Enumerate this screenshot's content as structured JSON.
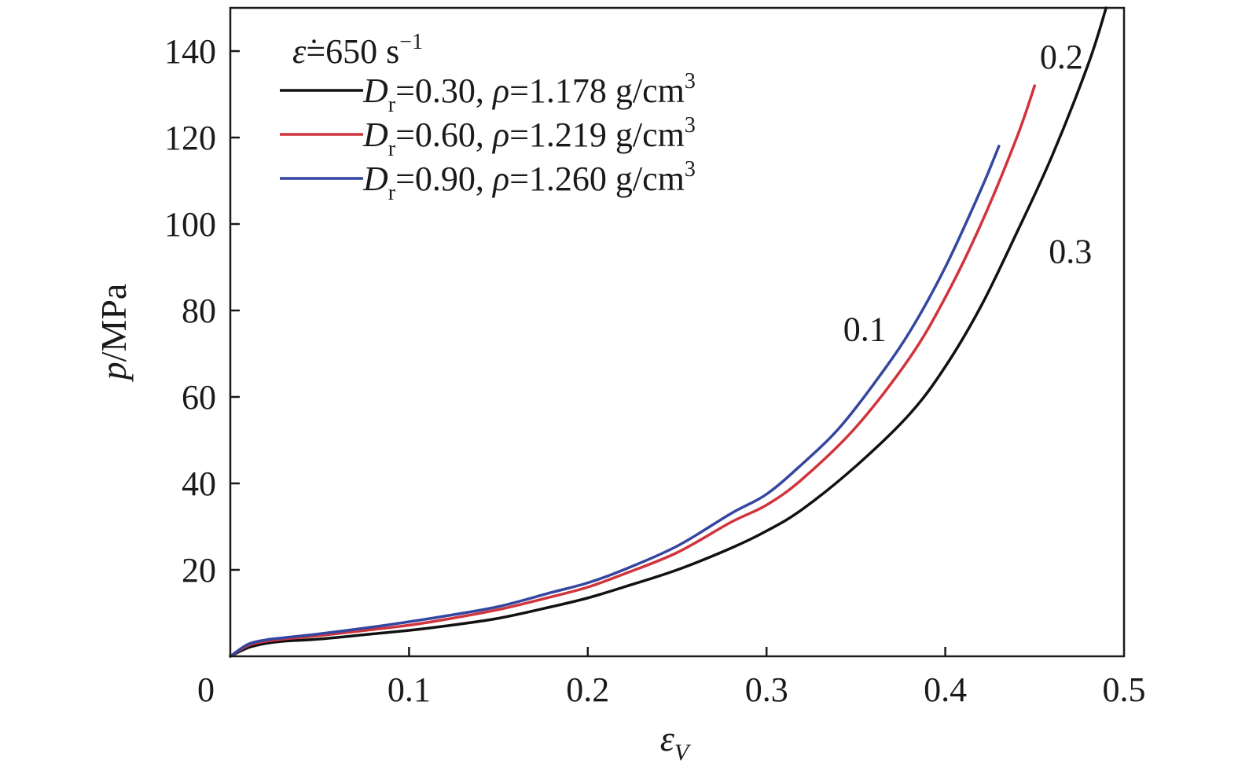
{
  "chart_data": {
    "type": "line",
    "xlabel": {
      "main": "ε",
      "sub": "V"
    },
    "ylabel": {
      "italic": "p",
      "rest": "/MPa"
    },
    "xlim": [
      0,
      0.5
    ],
    "ylim": [
      0,
      150
    ],
    "x_ticks": [
      {
        "value": 0,
        "label": "0"
      },
      {
        "value": 0.1,
        "label": "0.1"
      },
      {
        "value": 0.2,
        "label": "0.2"
      },
      {
        "value": 0.3,
        "label": "0.3"
      },
      {
        "value": 0.4,
        "label": "0.4"
      },
      {
        "value": 0.5,
        "label": "0.5"
      }
    ],
    "y_ticks": [
      {
        "value": 20,
        "label": "20"
      },
      {
        "value": 40,
        "label": "40"
      },
      {
        "value": 60,
        "label": "60"
      },
      {
        "value": 80,
        "label": "80"
      },
      {
        "value": 100,
        "label": "100"
      },
      {
        "value": 120,
        "label": "120"
      },
      {
        "value": 140,
        "label": "140"
      }
    ],
    "legend": {
      "position": "top-left",
      "header": {
        "symbol": "ε̇",
        "text": "=650 s",
        "sup": "−1"
      },
      "entries": [
        {
          "D": "D",
          "sub": "r",
          "text": "=0.30, ",
          "rho": "ρ",
          "text2": "=1.178 g/cm",
          "sup": "3",
          "color": "#111111"
        },
        {
          "D": "D",
          "sub": "r",
          "text": "=0.60, ",
          "rho": "ρ",
          "text2": "=1.219 g/cm",
          "sup": "3",
          "color": "#d0343c"
        },
        {
          "D": "D",
          "sub": "r",
          "text": "=0.90, ",
          "rho": "ρ",
          "text2": "=1.260 g/cm",
          "sup": "3",
          "color": "#3446a0"
        }
      ]
    },
    "series": [
      {
        "color": "#111111",
        "x": [
          0,
          0.01,
          0.02,
          0.03,
          0.05,
          0.08,
          0.1,
          0.12,
          0.15,
          0.18,
          0.2,
          0.22,
          0.25,
          0.28,
          0.3,
          0.32,
          0.35,
          0.38,
          0.4,
          0.42,
          0.44,
          0.46,
          0.48,
          0.49
        ],
        "y": [
          0,
          2,
          3,
          3.5,
          4,
          5.2,
          6,
          7,
          8.8,
          11.5,
          13.5,
          16,
          20,
          25,
          29,
          34,
          44,
          56,
          67,
          81,
          98,
          116,
          137,
          150
        ]
      },
      {
        "color": "#d0343c",
        "x": [
          0,
          0.01,
          0.02,
          0.03,
          0.05,
          0.08,
          0.1,
          0.12,
          0.15,
          0.18,
          0.2,
          0.22,
          0.25,
          0.28,
          0.3,
          0.32,
          0.35,
          0.38,
          0.4,
          0.42,
          0.44,
          0.45
        ],
        "y": [
          0,
          2.5,
          3.5,
          4,
          4.8,
          6.2,
          7.2,
          8.5,
          10.8,
          13.8,
          16,
          19,
          24,
          31,
          35,
          41,
          53,
          69,
          83,
          100,
          120,
          132
        ]
      },
      {
        "color": "#3446a0",
        "x": [
          0,
          0.01,
          0.02,
          0.03,
          0.05,
          0.08,
          0.1,
          0.12,
          0.15,
          0.18,
          0.2,
          0.22,
          0.25,
          0.28,
          0.3,
          0.32,
          0.34,
          0.36,
          0.38,
          0.4,
          0.42,
          0.43
        ],
        "y": [
          0,
          2.8,
          3.8,
          4.3,
          5.2,
          6.8,
          8,
          9.3,
          11.5,
          14.8,
          17,
          20,
          25.5,
          33,
          37.5,
          44.5,
          52.5,
          63,
          75,
          90,
          108,
          118
        ]
      }
    ],
    "annotations": [
      {
        "text": "0.1",
        "x": 0.355,
        "y": 73
      },
      {
        "text": "0.2",
        "x": 0.465,
        "y": 136
      },
      {
        "text": "0.3",
        "x": 0.47,
        "y": 91
      }
    ]
  }
}
